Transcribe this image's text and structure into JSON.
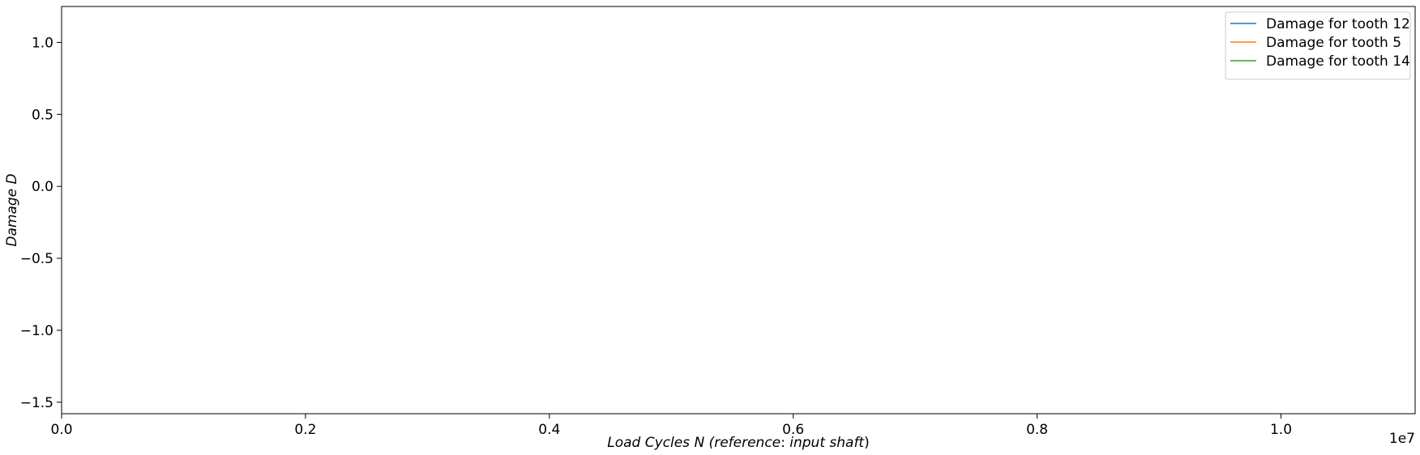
{
  "chart_data": {
    "type": "line",
    "xlabel_parts": [
      "Load Cycles N (",
      "reference",
      ": ",
      "input shaft",
      ")"
    ],
    "ylabel": "Damage D",
    "xlim": [
      0,
      11100000
    ],
    "ylim": [
      -1.58,
      1.25
    ],
    "x_ticks": [
      0,
      2000000,
      4000000,
      6000000,
      8000000,
      10000000
    ],
    "x_tick_labels": [
      "0.0",
      "0.2",
      "0.4",
      "0.6",
      "0.8",
      "1.0"
    ],
    "x_offset_label": "1e7",
    "y_ticks": [
      1.0,
      0.5,
      0.0,
      -0.5,
      -1.0,
      -1.5
    ],
    "y_tick_labels": [
      "1.0",
      "0.5",
      "0.0",
      "−0.5",
      "−1.0",
      "−1.5"
    ],
    "grid": false,
    "legend_position": "top-right",
    "series": [
      {
        "name": "Damage for tooth 12",
        "color": "#1f77b4",
        "x": [],
        "y": []
      },
      {
        "name": "Damage for tooth 5",
        "color": "#ff7f0e",
        "x": [],
        "y": []
      },
      {
        "name": "Damage for tooth 14",
        "color": "#2ca02c",
        "x": [],
        "y": []
      }
    ]
  }
}
